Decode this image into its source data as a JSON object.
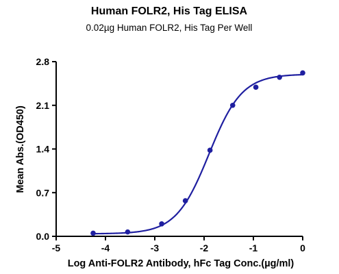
{
  "chart_data": {
    "type": "scatter",
    "title": "Human FOLR2, His Tag ELISA",
    "subtitle": "0.02µg Human FOLR2, His Tag Per Well",
    "xlabel": "Log Anti-FOLR2 Antibody, hFc Tag Conc.(µg/ml)",
    "ylabel": "Mean Abs.(OD450)",
    "xlim": [
      -5,
      0
    ],
    "ylim": [
      0,
      2.8
    ],
    "xticks": [
      "-5",
      "-4",
      "-3",
      "-2",
      "-1",
      "0"
    ],
    "yticks": [
      "0.0",
      "0.7",
      "1.4",
      "2.1",
      "2.8"
    ],
    "grid": false,
    "legend": "none",
    "series": [
      {
        "x": [
          -4.25,
          -3.55,
          -2.86,
          -2.38,
          -1.88,
          -1.42,
          -0.95,
          -0.47,
          0.0
        ],
        "values": [
          0.05,
          0.07,
          0.2,
          0.57,
          1.38,
          2.1,
          2.39,
          2.55,
          2.62
        ],
        "color": "#1f1fa0",
        "fit_curve": {
          "type": "4PL",
          "bottom": 0.04,
          "top": 2.6,
          "log_ec50": -1.9,
          "hill_slope": 1.3
        }
      }
    ]
  }
}
